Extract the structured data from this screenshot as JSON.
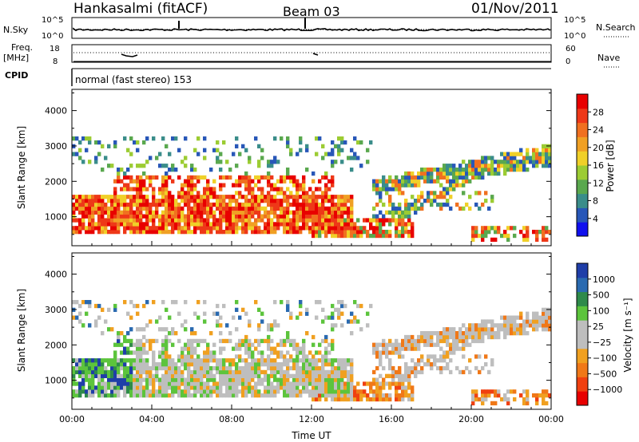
{
  "header": {
    "station": "Hankasalmi (fitACF)",
    "beam": "Beam 03",
    "date": "01/Nov/2011"
  },
  "summary_panels": {
    "nsky_label": "N.Sky",
    "nsearch_label": "N.Search",
    "freq_label_1": "Freq.",
    "freq_label_2": "[MHz]",
    "nave_label": "Nave",
    "cpid_label": "CPID",
    "cpid_text": "normal (fast stereo) 153",
    "noise_ticks": [
      "10^5",
      "10^0"
    ],
    "freq_ticks": [
      "18",
      "8"
    ],
    "nave_ticks": [
      "60",
      "0"
    ]
  },
  "chart_data": [
    {
      "type": "heatmap",
      "name": "power",
      "ylabel": "Slant Range [km]",
      "xlabel": "",
      "yticks": [
        "4000",
        "3000",
        "2000",
        "1000"
      ],
      "ylim": [
        180,
        4600
      ],
      "colorbar_label": "Power [dB]",
      "colorbar_ticks": [
        "28",
        "24",
        "20",
        "16",
        "12",
        "8",
        "4"
      ],
      "colors": [
        "#1010ee",
        "#2857b8",
        "#3a8d8a",
        "#5aa84e",
        "#9ccc33",
        "#f0d028",
        "#f0a024",
        "#f07020",
        "#ee3818",
        "#e80000"
      ]
    },
    {
      "type": "heatmap",
      "name": "velocity",
      "ylabel": "Slant Range [km]",
      "xlabel": "Time UT",
      "yticks": [
        "4000",
        "3000",
        "2000",
        "1000"
      ],
      "xticks": [
        "00:00",
        "04:00",
        "08:00",
        "12:00",
        "16:00",
        "20:00",
        "00:00"
      ],
      "ylim": [
        180,
        4600
      ],
      "colorbar_label": "Velocity [m s⁻¹]",
      "colorbar_ticks": [
        "1000",
        "500",
        "100",
        "25",
        "−25",
        "−100",
        "−500",
        "−1000"
      ],
      "colors": [
        "#1f3ea8",
        "#2a6ab0",
        "#2e8a4a",
        "#5cc43c",
        "#bebebe",
        "#bebebe",
        "#f0a020",
        "#f07818",
        "#f04010",
        "#e80000"
      ]
    }
  ]
}
